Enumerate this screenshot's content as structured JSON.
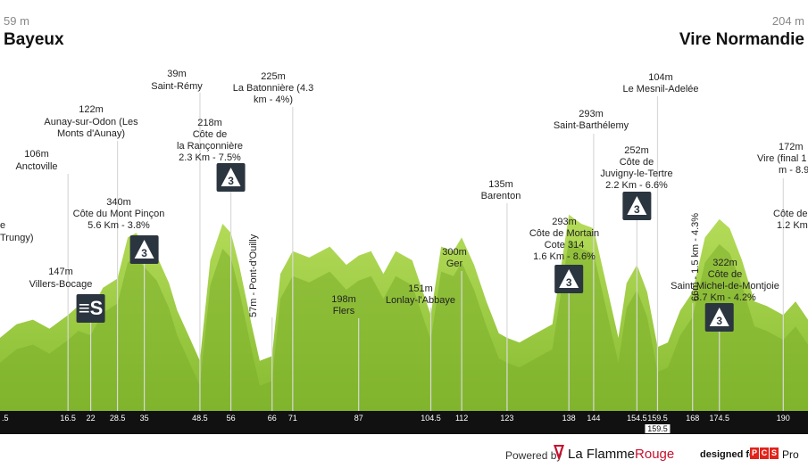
{
  "header": {
    "start_alt": "59 m",
    "start_name": "Bayeux",
    "finish_alt": "204 m",
    "finish_name": "Vire Normandie"
  },
  "chart_data": {
    "type": "area",
    "title": "",
    "xlabel": "",
    "ylabel": "",
    "x": [
      0,
      4,
      8,
      12,
      16.5,
      19,
      22,
      25,
      28.5,
      31,
      33,
      35,
      38,
      41,
      43,
      46,
      48.5,
      51,
      54,
      56,
      58,
      61,
      63,
      66,
      68,
      71,
      75,
      80,
      84,
      87,
      90,
      93,
      96,
      100,
      104.5,
      107,
      110,
      112,
      115,
      118,
      121,
      123,
      126,
      130,
      134,
      138,
      141,
      144,
      147,
      150,
      152,
      154.5,
      157,
      159.5,
      162,
      165,
      168,
      171,
      174.5,
      177,
      180,
      183,
      186,
      190,
      193,
      196
    ],
    "elevation_m": [
      80,
      95,
      100,
      90,
      105,
      115,
      110,
      135,
      145,
      190,
      195,
      185,
      170,
      140,
      110,
      80,
      55,
      165,
      205,
      195,
      160,
      95,
      55,
      60,
      150,
      175,
      168,
      180,
      160,
      170,
      175,
      150,
      175,
      165,
      105,
      180,
      175,
      190,
      160,
      120,
      85,
      80,
      75,
      85,
      95,
      215,
      205,
      200,
      140,
      80,
      140,
      160,
      130,
      70,
      75,
      110,
      130,
      190,
      210,
      200,
      165,
      120,
      115,
      105,
      120,
      100
    ],
    "ylim": [
      0,
      450
    ],
    "xlim": [
      0,
      196
    ],
    "markers": [
      {
        "km": "16.5",
        "x": 16.5,
        "name": "Anctoville",
        "alt": "106m",
        "cat": ""
      },
      {
        "km": "22",
        "x": 22,
        "name": "Villers-Bocage",
        "alt": "147m",
        "cat": "S"
      },
      {
        "km": "28.5",
        "x": 28.5,
        "name": "Aunay-sur-Odon (Les Monts d'Aunay)",
        "alt": "122m",
        "cat": ""
      },
      {
        "km": "35",
        "x": 35,
        "name": "Côte du Mont Pinçon 5.6 Km - 3.8%",
        "alt": "340m",
        "cat": "3"
      },
      {
        "km": "48.5",
        "x": 48.5,
        "name": "Saint-Rémy",
        "alt": "39m",
        "cat": ""
      },
      {
        "km": "56",
        "x": 56,
        "name": "Côte de la Rançonnière 2.3 Km - 7.5%",
        "alt": "218m",
        "cat": "3"
      },
      {
        "km": "66",
        "x": 66,
        "name": "Pont-d'Ouilly",
        "alt": "57m",
        "cat": ""
      },
      {
        "km": "71",
        "x": 71,
        "name": "La Batonnière (4.3 km - 4%)",
        "alt": "225m",
        "cat": ""
      },
      {
        "km": "87",
        "x": 87,
        "name": "Flers",
        "alt": "198m",
        "cat": ""
      },
      {
        "km": "104.5",
        "x": 104.5,
        "name": "Lonlay-l'Abbaye",
        "alt": "151m",
        "cat": ""
      },
      {
        "km": "112",
        "x": 112,
        "name": "Ger",
        "alt": "300m",
        "cat": ""
      },
      {
        "km": "123",
        "x": 123,
        "name": "Barenton",
        "alt": "135m",
        "cat": ""
      },
      {
        "km": "138",
        "x": 138,
        "name": "Côte de Mortain Cote 314 1.6 Km - 8.6%",
        "alt": "293m",
        "cat": "3"
      },
      {
        "km": "144",
        "x": 144,
        "name": "Saint-Barthélemy",
        "alt": "293m",
        "cat": ""
      },
      {
        "km": "154.5",
        "x": 154.5,
        "name": "Côte de Juvigny-le-Tertre 2.2 Km - 6.6%",
        "alt": "252m",
        "cat": "3"
      },
      {
        "km": "159.5",
        "x": 159.5,
        "name": "Le Mesnil-Adelée",
        "alt": "104m",
        "cat": ""
      },
      {
        "km": "168",
        "x": 168,
        "name": "1.5 km - 4.3%",
        "alt": "66m",
        "cat": ""
      },
      {
        "km": "174.5",
        "x": 174.5,
        "name": "Côte de Saint-Michel-de-Montjoie 3.7 Km - 4.2%",
        "alt": "322m",
        "cat": "3"
      },
      {
        "km": "190",
        "x": 190,
        "name": "Vire (final ...)",
        "alt": "172m",
        "cat": ""
      }
    ],
    "km_ticks": [
      ".5",
      "16.5",
      "22",
      "28.5",
      "35",
      "48.5",
      "56",
      "66",
      "71",
      "87",
      "104.5",
      "112",
      "123",
      "138",
      "144",
      "154.5",
      "159.5",
      "168",
      "174.5",
      "190"
    ]
  },
  "labels": {
    "left_partial_1": "e",
    "left_partial_2": "Trungy)",
    "anctoville": [
      "106m",
      "Anctoville"
    ],
    "villers": [
      "147m",
      "Villers-Bocage"
    ],
    "aunay": [
      "122m",
      "Aunay-sur-Odon (Les",
      "Monts d'Aunay)"
    ],
    "pincon": [
      "340m",
      "Côte du Mont Pinçon",
      "5.6 Km - 3.8%"
    ],
    "remy": [
      "39m",
      "Saint-Rémy"
    ],
    "ranconniere": [
      "218m",
      "Côte de",
      "la Rançonnière",
      "2.3 Km - 7.5%"
    ],
    "pont": "57m - Pont-d'Ouilly",
    "batonniere": [
      "225m",
      "La Batonnière (4.3",
      "km - 4%)"
    ],
    "flers": [
      "198m",
      "Flers"
    ],
    "lonlay": [
      "151m",
      "Lonlay-l'Abbaye"
    ],
    "ger": [
      "300m",
      "Ger"
    ],
    "barenton": [
      "135m",
      "Barenton"
    ],
    "mortain": [
      "293m",
      "Côte de Mortain",
      "Cote 314",
      "1.6 Km - 8.6%"
    ],
    "barthelemy": [
      "293m",
      "Saint-Barthélemy"
    ],
    "juvigny": [
      "252m",
      "Côte de",
      "Juvigny-le-Tertre",
      "2.2 Km - 6.6%"
    ],
    "mesnil": [
      "104m",
      "Le Mesnil-Adelée"
    ],
    "vert1": "66m - 1.5 km - 4.3%",
    "montjoie": [
      "322m",
      "Côte de",
      "Saint-Michel-de-Montjoie",
      "3.7 Km - 4.2%"
    ],
    "vire": [
      "172m",
      "Vire (final 1",
      "m - 8.9%"
    ],
    "right_partial": [
      "Côte de",
      "1.2 Km"
    ]
  },
  "footer": {
    "powered": "Powered by",
    "brand_a": "La Flamme",
    "brand_b": "Rouge",
    "designed": "designed for",
    "pcs": [
      "P",
      "C",
      "S"
    ],
    "pro": "Pro"
  },
  "colors": {
    "profile_light": "#a6d44a",
    "profile_dark": "#7cae2a",
    "baseline": "#111111",
    "category_badge": "#2b3540",
    "accent": "#c8102e"
  }
}
